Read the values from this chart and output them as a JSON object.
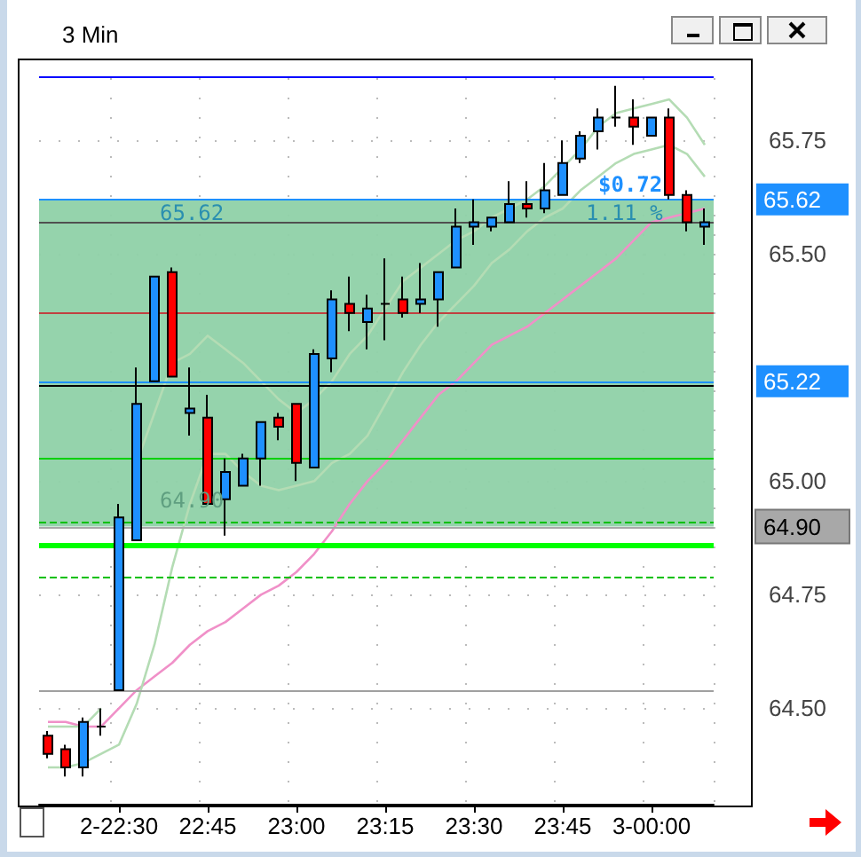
{
  "chart_data": {
    "type": "candlestick",
    "title": "3 Min",
    "categories": [
      null,
      null,
      null,
      null,
      "2-22:30",
      null,
      null,
      null,
      null,
      "22:45",
      null,
      null,
      null,
      null,
      "23:00",
      null,
      null,
      null,
      null,
      "23:15",
      null,
      null,
      null,
      null,
      "23:30",
      null,
      null,
      null,
      null,
      "23:45",
      null,
      null,
      null,
      null,
      "3-00:00",
      null,
      null,
      null
    ],
    "ohlc": [
      [
        64.44,
        64.45,
        64.39,
        64.4
      ],
      [
        64.41,
        64.42,
        64.35,
        64.37
      ],
      [
        64.37,
        64.48,
        64.35,
        64.47
      ],
      [
        64.46,
        64.5,
        64.44,
        64.46
      ],
      [
        64.54,
        64.95,
        64.54,
        64.92
      ],
      [
        64.87,
        65.25,
        64.87,
        65.17
      ],
      [
        65.22,
        65.45,
        65.22,
        65.45
      ],
      [
        65.46,
        65.47,
        65.23,
        65.23
      ],
      [
        65.15,
        65.25,
        65.1,
        65.16
      ],
      [
        65.14,
        65.19,
        64.95,
        64.95
      ],
      [
        64.96,
        65.05,
        64.88,
        65.02
      ],
      [
        64.99,
        65.06,
        64.99,
        65.05
      ],
      [
        65.05,
        65.13,
        64.99,
        65.13
      ],
      [
        65.14,
        65.15,
        65.09,
        65.12
      ],
      [
        65.17,
        65.17,
        65.0,
        65.04
      ],
      [
        65.03,
        65.29,
        65.03,
        65.28
      ],
      [
        65.27,
        65.42,
        65.24,
        65.4
      ],
      [
        65.39,
        65.45,
        65.33,
        65.37
      ],
      [
        65.35,
        65.41,
        65.29,
        65.38
      ],
      [
        65.39,
        65.49,
        65.31,
        65.39
      ],
      [
        65.4,
        65.45,
        65.36,
        65.37
      ],
      [
        65.39,
        65.48,
        65.37,
        65.4
      ],
      [
        65.4,
        65.46,
        65.34,
        65.46
      ],
      [
        65.47,
        65.6,
        65.47,
        65.56
      ],
      [
        65.56,
        65.62,
        65.52,
        65.57
      ],
      [
        65.56,
        65.58,
        65.55,
        65.58
      ],
      [
        65.57,
        65.66,
        65.57,
        65.61
      ],
      [
        65.61,
        65.66,
        65.58,
        65.6
      ],
      [
        65.6,
        65.7,
        65.59,
        65.64
      ],
      [
        65.63,
        65.75,
        65.63,
        65.7
      ],
      [
        65.71,
        65.77,
        65.7,
        65.76
      ],
      [
        65.77,
        65.82,
        65.73,
        65.8
      ],
      [
        65.8,
        65.87,
        65.78,
        65.8
      ],
      [
        65.8,
        65.84,
        65.74,
        65.78
      ],
      [
        65.76,
        65.8,
        65.76,
        65.8
      ],
      [
        65.8,
        65.82,
        65.62,
        65.63
      ],
      [
        65.63,
        65.64,
        65.55,
        65.57
      ],
      [
        65.56,
        65.6,
        65.52,
        65.57
      ]
    ],
    "colors": [
      "#ff0000",
      "#ff0000",
      "#1e90ff",
      "#000000",
      "#1e90ff",
      "#1e90ff",
      "#1e90ff",
      "#ff0000",
      "#1e90ff",
      "#ff0000",
      "#1e90ff",
      "#1e90ff",
      "#1e90ff",
      "#ff0000",
      "#ff0000",
      "#1e90ff",
      "#1e90ff",
      "#ff0000",
      "#1e90ff",
      "#000000",
      "#ff0000",
      "#1e90ff",
      "#1e90ff",
      "#1e90ff",
      "#1e90ff",
      "#1e90ff",
      "#1e90ff",
      "#ff0000",
      "#1e90ff",
      "#1e90ff",
      "#1e90ff",
      "#1e90ff",
      "#000000",
      "#ff0000",
      "#1e90ff",
      "#ff0000",
      "#ff0000",
      "#1e90ff"
    ],
    "series": [
      {
        "type": "line",
        "color": "#f090c8",
        "values": [
          64.47,
          64.47,
          64.46,
          64.46,
          64.5,
          64.54,
          64.57,
          64.6,
          64.64,
          64.67,
          64.69,
          64.72,
          64.75,
          64.77,
          64.8,
          64.84,
          64.89,
          64.95,
          65.0,
          65.04,
          65.09,
          65.14,
          65.19,
          65.22,
          65.26,
          65.3,
          65.32,
          65.34,
          65.37,
          65.4,
          65.43,
          65.46,
          65.49,
          65.53,
          65.57,
          65.58,
          65.59,
          65.6
        ]
      },
      {
        "type": "line",
        "color": "#b4dcb4",
        "values": [
          64.46,
          64.46,
          64.46,
          64.5,
          null,
          65.04,
          65.15,
          65.26,
          65.28,
          65.32,
          65.29,
          65.26,
          65.22,
          65.18,
          65.15,
          65.18,
          65.22,
          65.28,
          65.32,
          65.38,
          65.44,
          65.47,
          65.5,
          65.53,
          65.55,
          65.58,
          65.6,
          65.62,
          65.65,
          65.69,
          65.73,
          65.78,
          65.81,
          65.82,
          65.83,
          65.84,
          65.8,
          65.74
        ]
      },
      {
        "type": "line",
        "color": "#b4dcb4",
        "values": [
          64.37,
          64.37,
          64.38,
          64.4,
          64.42,
          64.51,
          64.64,
          64.81,
          64.95,
          65.06,
          65.06,
          65.02,
          64.99,
          64.98,
          64.99,
          65.0,
          65.04,
          65.06,
          65.1,
          65.17,
          65.24,
          65.3,
          65.35,
          65.39,
          65.43,
          65.48,
          65.51,
          65.55,
          65.58,
          65.6,
          65.64,
          65.67,
          65.7,
          65.72,
          65.73,
          65.74,
          65.72,
          65.67
        ]
      }
    ],
    "ylim": [
      64.29,
      65.93
    ],
    "yticks": [
      {
        "value": 64.5,
        "label": "64.50"
      },
      64.75,
      {
        "value": 65,
        "label": "65.00"
      },
      {
        "value": 65.5,
        "label": "65.50"
      },
      65.75
    ],
    "grid": true,
    "ref_lines": [
      {
        "axis": "y",
        "value": 65.89,
        "color": "#0000ff"
      },
      {
        "axis": "y",
        "value": 65.57,
        "color": "#505050"
      },
      {
        "axis": "y",
        "value": 65.37,
        "color": "#c04040"
      },
      {
        "axis": "y",
        "value": 65.21,
        "color": "#000000"
      },
      {
        "axis": "y",
        "value": 65.22,
        "label": "65.22",
        "color": "#1e90ff"
      },
      {
        "axis": "y",
        "value": 65.05,
        "color": "#00d000"
      },
      {
        "axis": "y",
        "value": 64.91,
        "color": "#00c000",
        "line_style": "dashed"
      },
      {
        "axis": "y",
        "value": 64.86,
        "color": "#00ff00"
      },
      {
        "axis": "y",
        "value": 64.79,
        "color": "#00c000",
        "line_style": "dashed"
      },
      {
        "axis": "y",
        "value": 64.54,
        "color": "#a0a0a0"
      },
      {
        "axis": "y",
        "value": 65.62,
        "label": "65.62",
        "color": "#1e90ff"
      },
      {
        "axis": "y",
        "value": 64.9,
        "label": "64.90",
        "color": "#a8a8a8"
      }
    ],
    "bands": [
      {
        "axis": "y",
        "from": 64.9,
        "to": 65.62,
        "color": "#8fd1a8"
      }
    ],
    "annotations": [
      "65.62",
      "64.90",
      "$0.72",
      "1.11 %"
    ]
  }
}
